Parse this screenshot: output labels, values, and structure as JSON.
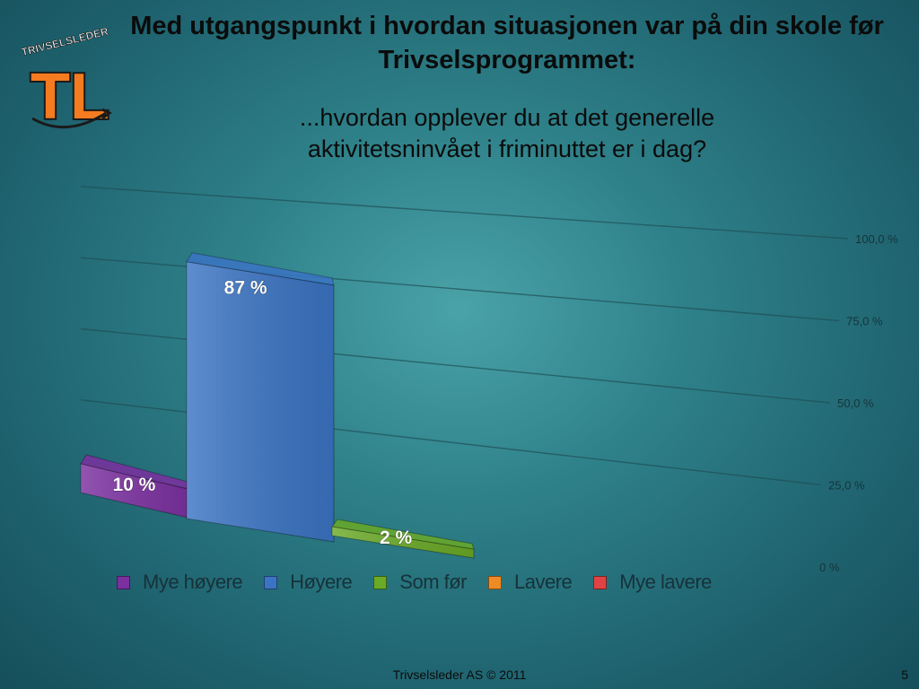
{
  "slide": {
    "title": "Med utgangspunkt i hvordan situasjonen var på din skole før Trivselsprogrammet:",
    "subtitle": "...hvordan opplever du at det generelle aktivitetsninvået i friminuttet er i dag?",
    "footer": "Trivselsleder AS  © 2011",
    "page_number": "5",
    "logo": {
      "brand_text": "TRIVSELSLEDER",
      "mark": "TL"
    }
  },
  "chart_data": {
    "type": "bar",
    "title": "",
    "xlabel": "",
    "ylabel": "",
    "ylim": [
      0,
      100
    ],
    "yticks": [
      "0 %",
      "25,0 %",
      "50,0 %",
      "75,0 %",
      "100,0 %"
    ],
    "grid": true,
    "legend_position": "bottom",
    "categories": [
      "Mye høyere",
      "Høyere",
      "Som før",
      "Lavere",
      "Mye lavere"
    ],
    "values": [
      10,
      87,
      2,
      0,
      0
    ],
    "data_labels": [
      "10 %",
      "87 %",
      "2 %",
      "",
      ""
    ],
    "colors": [
      "#7b2fa0",
      "#3b74c4",
      "#6aaa26",
      "#f08a24",
      "#e04343"
    ]
  }
}
